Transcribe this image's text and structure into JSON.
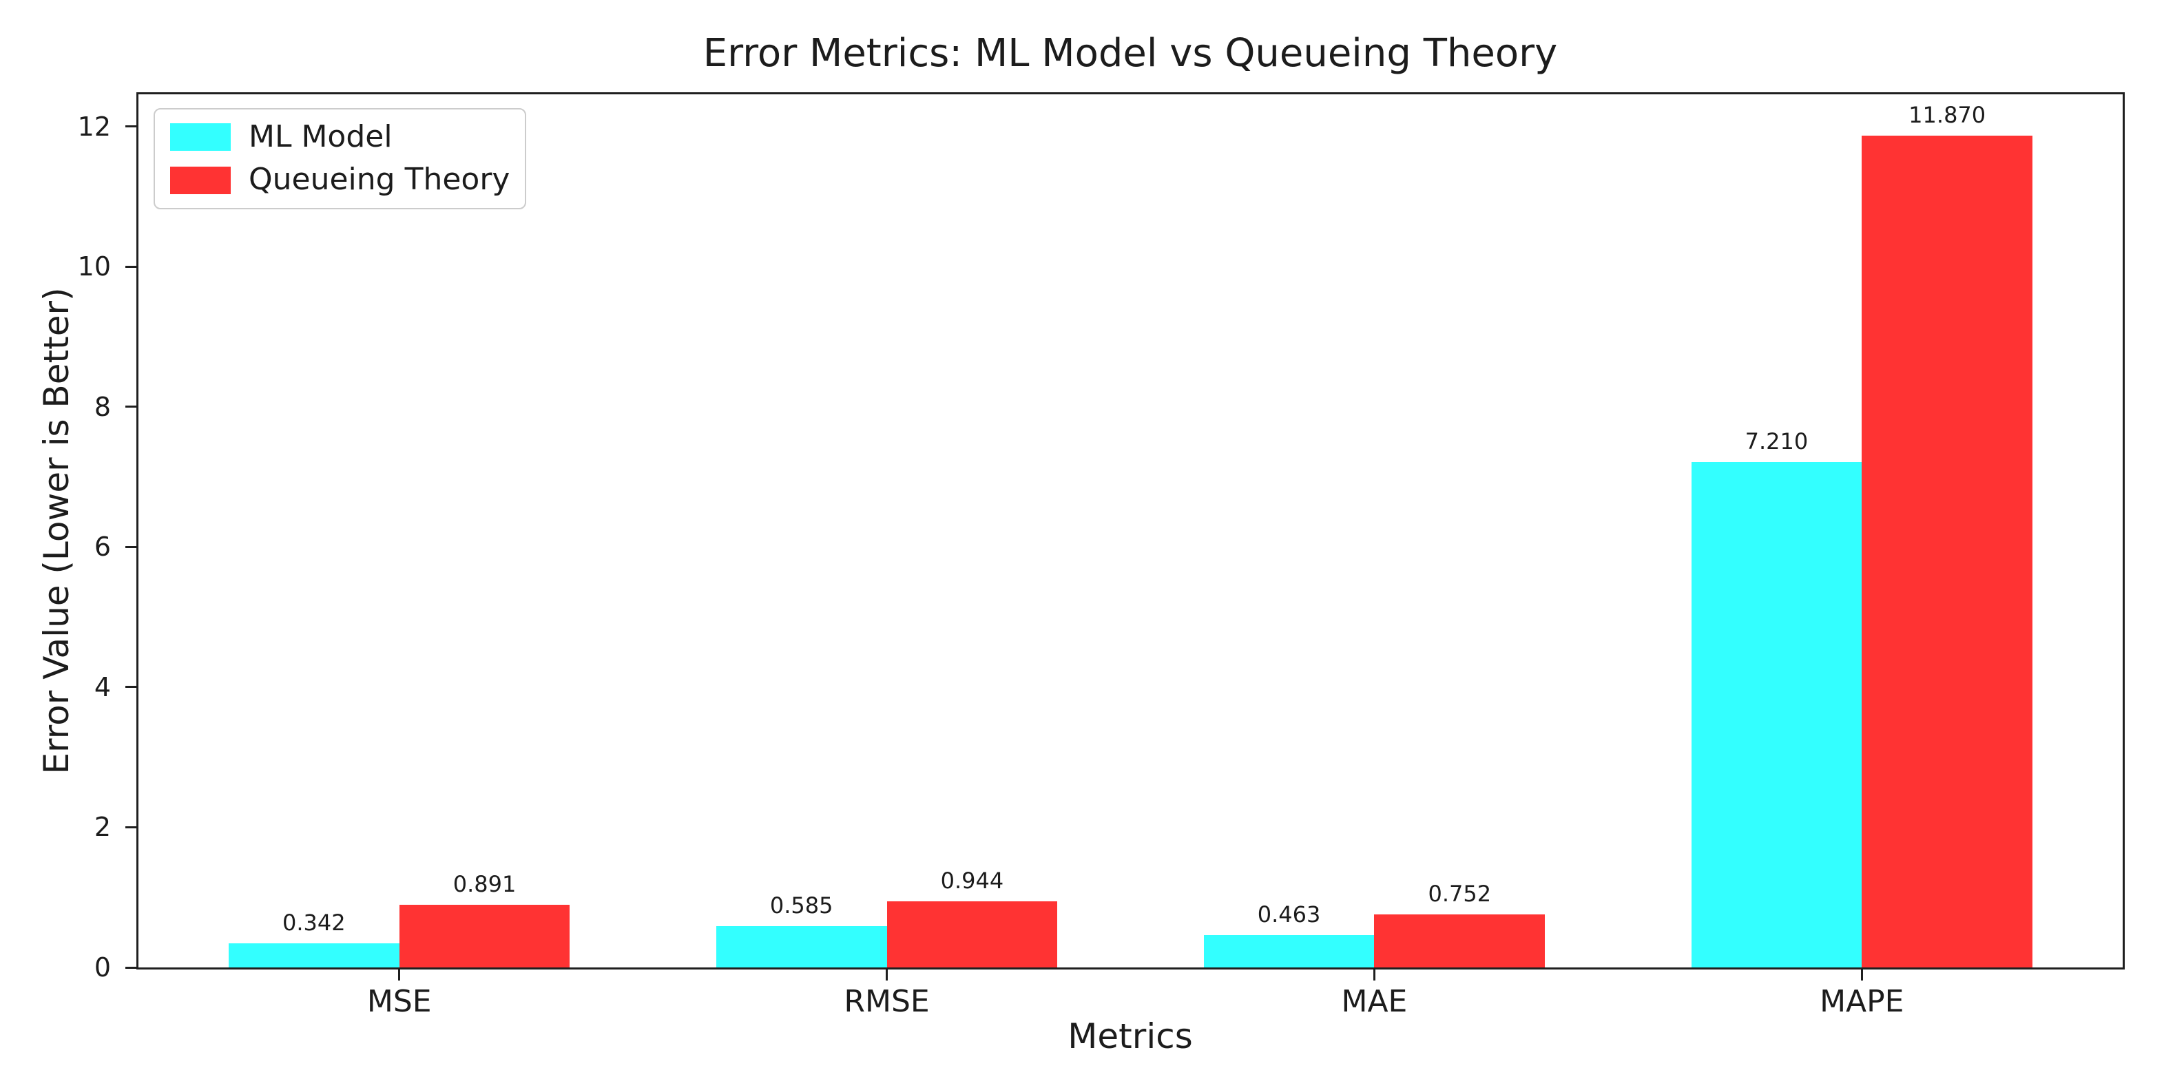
{
  "chart_data": {
    "type": "bar",
    "title": "Error Metrics: ML Model vs Queueing Theory",
    "xlabel": "Metrics",
    "ylabel": "Error Value (Lower is Better)",
    "categories": [
      "MSE",
      "RMSE",
      "MAE",
      "MAPE"
    ],
    "series": [
      {
        "name": "ML Model",
        "color": "#33ffff",
        "values": [
          0.342,
          0.585,
          0.463,
          7.21
        ]
      },
      {
        "name": "Queueing Theory",
        "color": "#ff3333",
        "values": [
          0.891,
          0.944,
          0.752,
          11.87
        ]
      }
    ],
    "value_labels": [
      [
        "0.342",
        "0.585",
        "0.463",
        "7.210"
      ],
      [
        "0.891",
        "0.944",
        "0.752",
        "11.870"
      ]
    ],
    "ylim": [
      0,
      12.46
    ],
    "yticks": [
      0,
      2,
      4,
      6,
      8,
      10,
      12
    ],
    "bar_width": 0.35,
    "legend_position": "upper left",
    "grid": false,
    "spine_color": "#1f1f1f",
    "background": "#ffffff"
  }
}
